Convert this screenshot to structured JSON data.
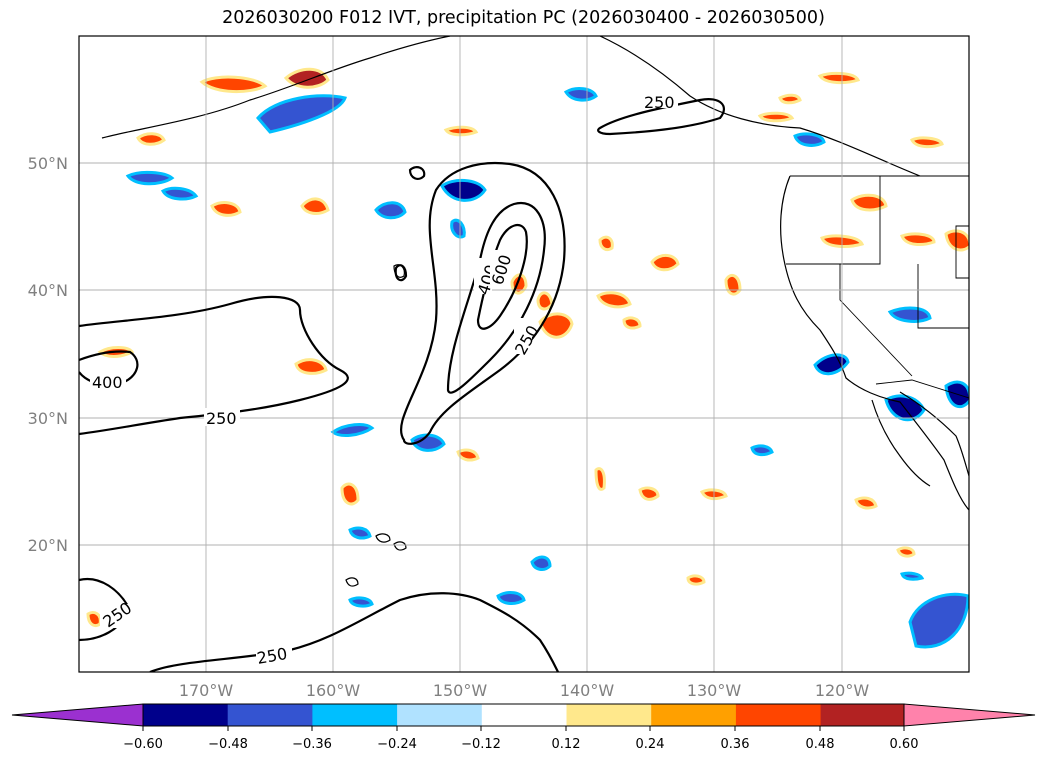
{
  "title": "2026030200 F012 IVT, precipitation PC (2026030400 - 2026030500)",
  "map": {
    "lat_labels": [
      "50°N",
      "40°N",
      "30°N",
      "20°N"
    ],
    "lon_labels": [
      "170°W",
      "160°W",
      "150°W",
      "140°W",
      "130°W",
      "120°W"
    ],
    "ivt_contour_levels": [
      250,
      400,
      600
    ],
    "contour_labels": [
      "250",
      "400",
      "600",
      "250",
      "400",
      "250",
      "250",
      "250"
    ]
  },
  "colorbar": {
    "tick_labels": [
      "−0.60",
      "−0.48",
      "−0.36",
      "−0.24",
      "−0.12",
      "0.12",
      "0.24",
      "0.36",
      "0.48",
      "0.60"
    ],
    "colors": [
      "#9b30d0",
      "#00008b",
      "#3454d1",
      "#00bfff",
      "#b0e2ff",
      "#ffffff",
      "#ffe88c",
      "#ffa000",
      "#ff4500",
      "#b22222",
      "#ff82ab",
      "#ff82ab"
    ],
    "under_color": "#9b30d0",
    "over_color": "#ff82ab"
  }
}
